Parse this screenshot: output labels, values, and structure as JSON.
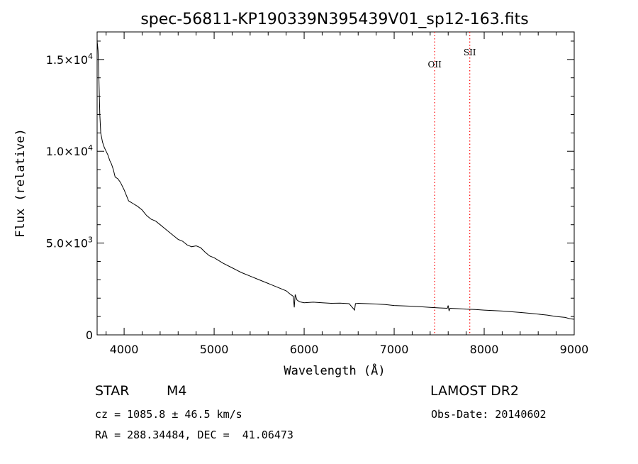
{
  "chart_data": {
    "type": "line",
    "title": "spec-56811-KP190339N395439V01_sp12-163.fits",
    "xlabel": "Wavelength (Å)",
    "ylabel": "Flux (relative)",
    "xlim": [
      3700,
      9000
    ],
    "ylim": [
      0,
      16500
    ],
    "x_ticks": [
      4000,
      5000,
      6000,
      7000,
      8000,
      9000
    ],
    "x_tick_labels": [
      "4000",
      "5000",
      "6000",
      "7000",
      "8000",
      "9000"
    ],
    "y_ticks": [
      0,
      5000,
      10000,
      15000
    ],
    "y_tick_labels": [
      {
        "mantissa": "0",
        "exp": ""
      },
      {
        "mantissa": "5.0×10",
        "exp": "3"
      },
      {
        "mantissa": "1.0×10",
        "exp": "4"
      },
      {
        "mantissa": "1.5×10",
        "exp": "4"
      }
    ],
    "grid": false,
    "legend": "none",
    "line_color": "#000000",
    "series": [
      {
        "x": [
          3700,
          3710,
          3720,
          3730,
          3740,
          3760,
          3780,
          3800,
          3820,
          3840,
          3860,
          3880,
          3900,
          3930,
          3960,
          4000,
          4050,
          4100,
          4150,
          4200,
          4250,
          4300,
          4350,
          4400,
          4450,
          4500,
          4550,
          4600,
          4650,
          4700,
          4750,
          4800,
          4850,
          4900,
          4950,
          5000,
          5100,
          5200,
          5300,
          5400,
          5500,
          5600,
          5700,
          5800,
          5850,
          5880,
          5890,
          5900,
          5920,
          5950,
          6000,
          6100,
          6200,
          6300,
          6400,
          6500,
          6560,
          6570,
          6600,
          6700,
          6800,
          6900,
          7000,
          7100,
          7200,
          7300,
          7400,
          7500,
          7590,
          7600,
          7610,
          7620,
          7700,
          7800,
          7900,
          8000,
          8100,
          8200,
          8300,
          8400,
          8500,
          8600,
          8700,
          8800,
          8900,
          8950,
          9000
        ],
        "y": [
          16000,
          15500,
          14000,
          12000,
          11000,
          10500,
          10200,
          10000,
          9800,
          9500,
          9300,
          9000,
          8600,
          8500,
          8300,
          7900,
          7300,
          7150,
          7000,
          6800,
          6500,
          6300,
          6200,
          6000,
          5800,
          5600,
          5400,
          5200,
          5100,
          4900,
          4800,
          4850,
          4750,
          4500,
          4300,
          4200,
          3900,
          3650,
          3400,
          3200,
          3000,
          2800,
          2600,
          2400,
          2200,
          2100,
          1500,
          2200,
          1900,
          1800,
          1750,
          1780,
          1750,
          1720,
          1730,
          1700,
          1350,
          1700,
          1720,
          1700,
          1680,
          1650,
          1600,
          1580,
          1560,
          1530,
          1500,
          1470,
          1450,
          1600,
          1300,
          1450,
          1430,
          1400,
          1380,
          1350,
          1320,
          1300,
          1260,
          1220,
          1180,
          1130,
          1080,
          1000,
          950,
          880,
          850
        ]
      }
    ],
    "annotations": [
      {
        "label": "OII",
        "x": 7450,
        "color": "#ff0000",
        "style": "dotted"
      },
      {
        "label": "SII",
        "x": 7840,
        "color": "#ff0000",
        "style": "dotted"
      }
    ]
  },
  "info": {
    "object_class": "STAR",
    "subclass": "M4",
    "survey": "LAMOST DR2",
    "cz": "cz = 1085.8 ± 46.5 km/s",
    "obs_date": "Obs-Date: 20140602",
    "radec": "RA = 288.34484, DEC =  41.06473"
  }
}
